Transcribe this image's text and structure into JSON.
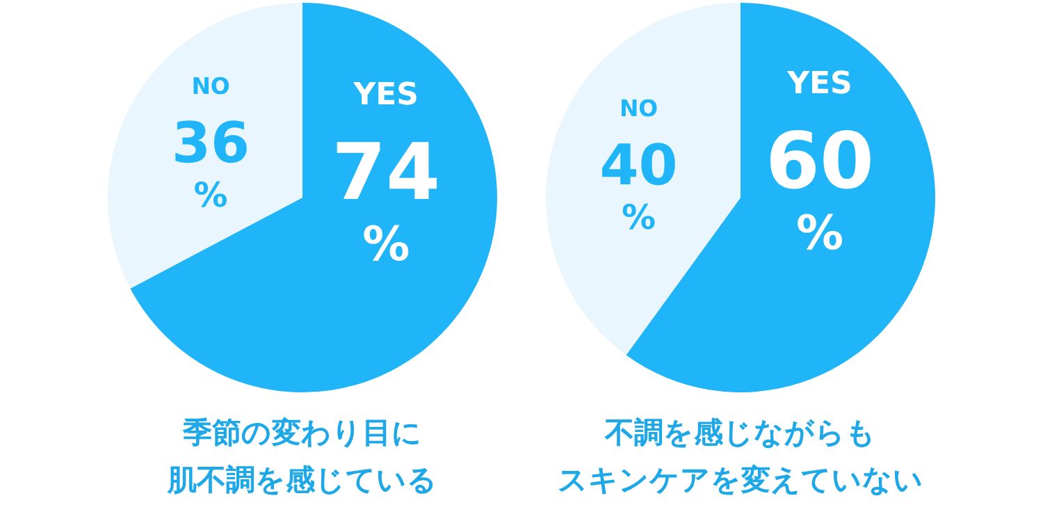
{
  "chart_data": [
    {
      "type": "pie",
      "title": "季節の変わり目に",
      "subtitle": "肌不調を感じている",
      "categories": [
        "YES",
        "NO"
      ],
      "values": [
        74,
        36
      ],
      "value_labels": [
        "74%",
        "36%"
      ],
      "colors": [
        "#1fb5f8",
        "#e9f6fd"
      ]
    },
    {
      "type": "pie",
      "title": "不調を感じながらも",
      "subtitle": "スキンケアを変えていない",
      "categories": [
        "YES",
        "NO"
      ],
      "values": [
        60,
        40
      ],
      "value_labels": [
        "60%",
        "40%"
      ],
      "colors": [
        "#1fb5f8",
        "#e9f6fd"
      ]
    }
  ]
}
